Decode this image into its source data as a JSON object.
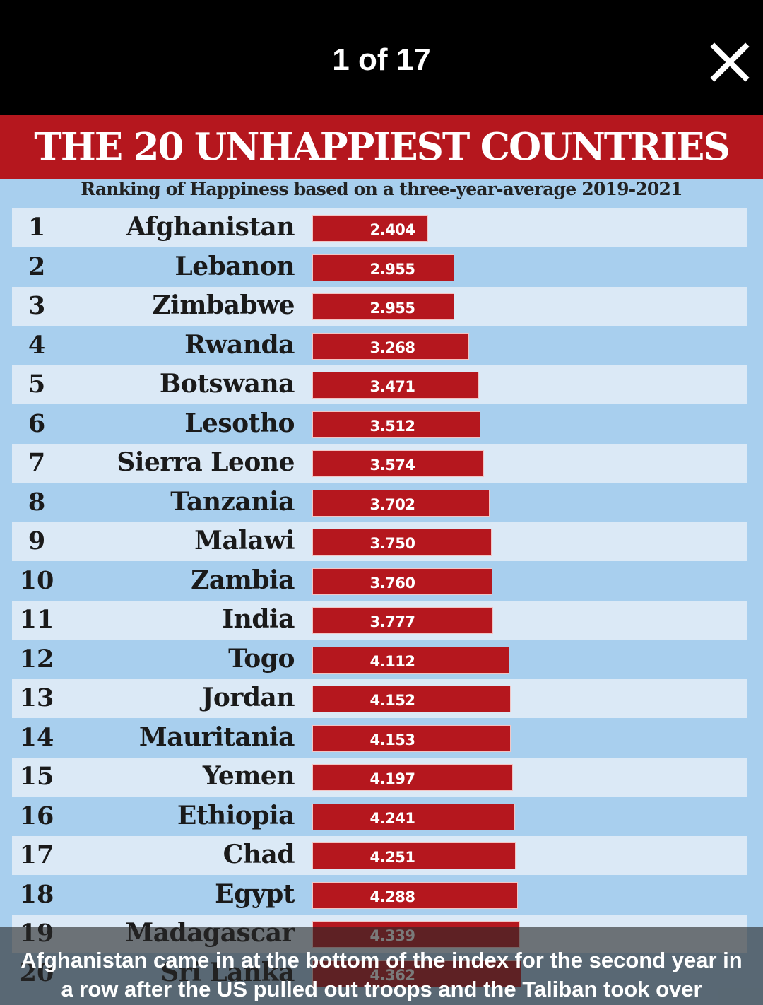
{
  "header": {
    "counter": "1 of 17",
    "close_icon": "close-icon"
  },
  "graphic": {
    "title": "THE 20 UNHAPPIEST COUNTRIES",
    "subtitle": "Ranking of Happiness based on a three-year-average 2019-2021",
    "bar_color": "#b5171e",
    "background_color": "#a8cfee"
  },
  "chart_data": {
    "type": "bar",
    "orientation": "horizontal",
    "title": "THE 20 UNHAPPIEST COUNTRIES",
    "subtitle": "Ranking of Happiness based on a three-year-average 2019-2021",
    "rows": [
      {
        "rank": "1",
        "country": "Afghanistan",
        "value": 2.404,
        "label": "2.404"
      },
      {
        "rank": "2",
        "country": "Lebanon",
        "value": 2.955,
        "label": "2.955"
      },
      {
        "rank": "3",
        "country": "Zimbabwe",
        "value": 2.955,
        "label": "2.955"
      },
      {
        "rank": "4",
        "country": "Rwanda",
        "value": 3.268,
        "label": "3.268"
      },
      {
        "rank": "5",
        "country": "Botswana",
        "value": 3.471,
        "label": "3.471"
      },
      {
        "rank": "6",
        "country": "Lesotho",
        "value": 3.512,
        "label": "3.512"
      },
      {
        "rank": "7",
        "country": "Sierra Leone",
        "value": 3.574,
        "label": "3.574"
      },
      {
        "rank": "8",
        "country": "Tanzania",
        "value": 3.702,
        "label": "3.702"
      },
      {
        "rank": "9",
        "country": "Malawi",
        "value": 3.75,
        "label": "3.750"
      },
      {
        "rank": "10",
        "country": "Zambia",
        "value": 3.76,
        "label": "3.760"
      },
      {
        "rank": "11",
        "country": "India",
        "value": 3.777,
        "label": "3.777"
      },
      {
        "rank": "12",
        "country": "Togo",
        "value": 4.112,
        "label": "4.112"
      },
      {
        "rank": "13",
        "country": "Jordan",
        "value": 4.152,
        "label": "4.152"
      },
      {
        "rank": "14",
        "country": "Mauritania",
        "value": 4.153,
        "label": "4.153"
      },
      {
        "rank": "15",
        "country": "Yemen",
        "value": 4.197,
        "label": "4.197"
      },
      {
        "rank": "16",
        "country": "Ethiopia",
        "value": 4.241,
        "label": "4.241"
      },
      {
        "rank": "17",
        "country": "Chad",
        "value": 4.251,
        "label": "4.251"
      },
      {
        "rank": "18",
        "country": "Egypt",
        "value": 4.288,
        "label": "4.288"
      },
      {
        "rank": "19",
        "country": "Madagascar",
        "value": 4.339,
        "label": "4.339"
      },
      {
        "rank": "20",
        "country": "Sri Lanka",
        "value": 4.362,
        "label": "4.362"
      }
    ]
  },
  "caption": {
    "text": "Afghanistan came in at the bottom of the index for the second year in a row after the US pulled out troops and the Taliban took over"
  }
}
